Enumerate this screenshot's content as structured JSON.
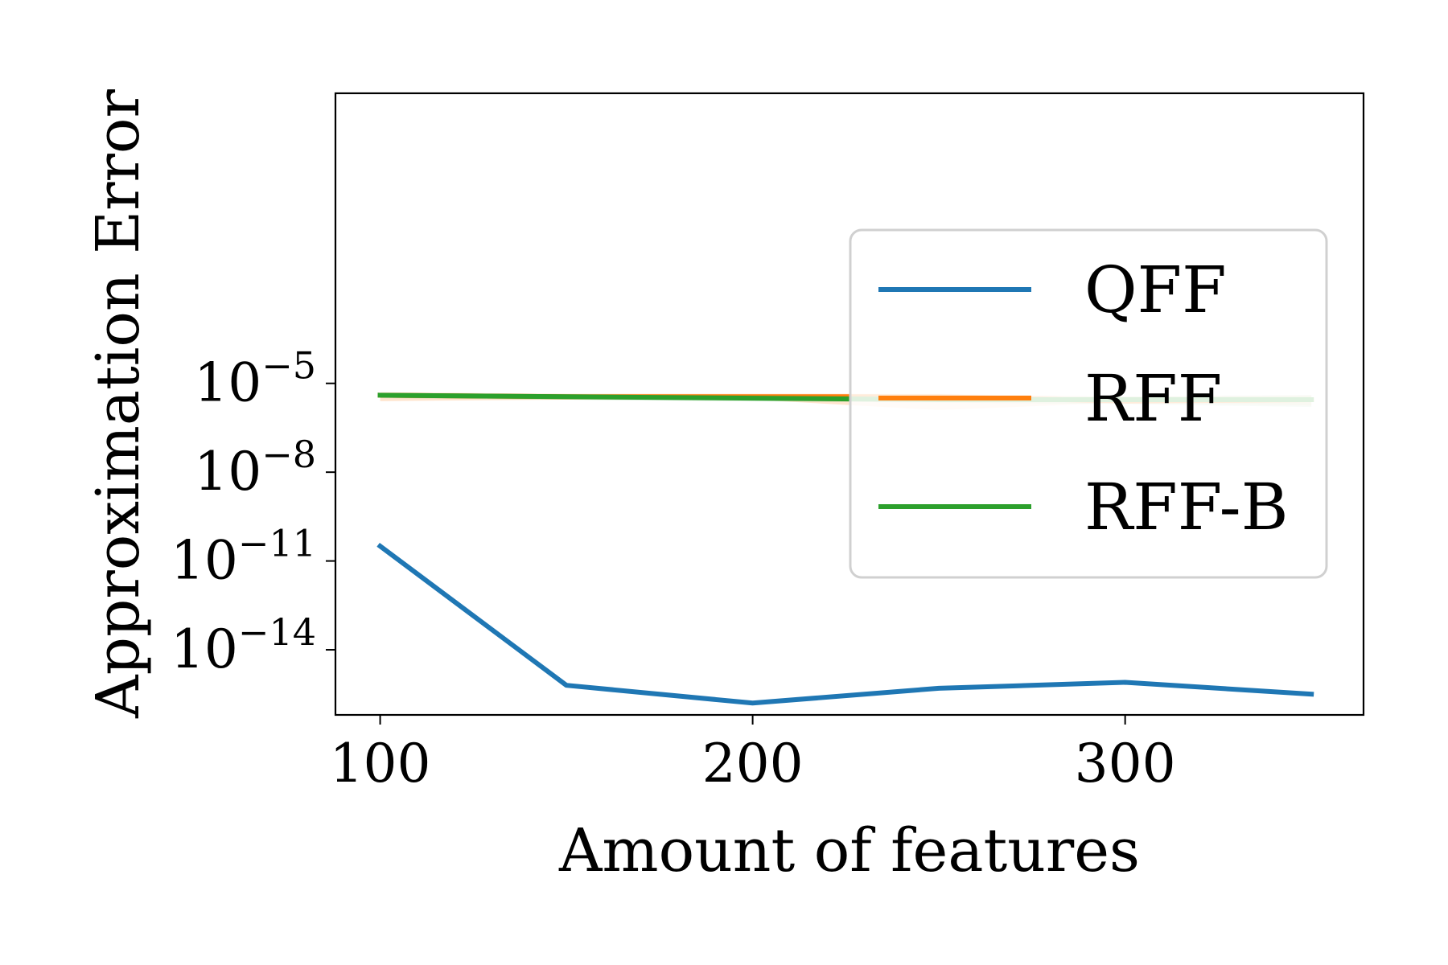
{
  "chart_data": {
    "type": "line",
    "title": "",
    "xlabel": "Amount of features",
    "ylabel": "Approximation Error",
    "x": [
      100,
      150,
      200,
      250,
      300,
      350
    ],
    "xlim": [
      88,
      364
    ],
    "xticks": [
      100,
      200,
      300
    ],
    "xtick_labels": [
      "100",
      "200",
      "300"
    ],
    "yscale": "log",
    "ylim_log10": [
      -16.2,
      4.8
    ],
    "yticks": [
      {
        "exp": -5,
        "base": "10",
        "sup": "−5"
      },
      {
        "exp": -8,
        "base": "10",
        "sup": "−8"
      },
      {
        "exp": -11,
        "base": "10",
        "sup": "−11"
      },
      {
        "exp": -14,
        "base": "10",
        "sup": "−14"
      }
    ],
    "grid": false,
    "legend_position": "center-right",
    "series": [
      {
        "name": "QFF",
        "color": "#1f77b4",
        "log10_values": [
          -10.5,
          -15.2,
          -15.8,
          -15.3,
          -15.1,
          -15.5
        ]
      },
      {
        "name": "RFF",
        "color": "#ff7f0e",
        "log10_values": [
          -5.4,
          -5.45,
          -5.45,
          -5.45,
          -5.6,
          -5.55
        ],
        "band_log10_low": [
          -5.6,
          -5.55,
          -5.55,
          -5.9,
          -5.65,
          -5.75
        ],
        "band_log10_high": [
          -5.3,
          -5.35,
          -5.35,
          -5.35,
          -5.45,
          -5.4
        ]
      },
      {
        "name": "RFF-B",
        "color": "#2ca02c",
        "log10_values": [
          -5.4,
          -5.45,
          -5.5,
          -5.55,
          -5.55,
          -5.55
        ],
        "band_log10_low": [
          -5.5,
          -5.55,
          -5.6,
          -5.65,
          -5.7,
          -5.8
        ],
        "band_log10_high": [
          -5.35,
          -5.4,
          -5.45,
          -5.45,
          -5.45,
          -5.4
        ]
      }
    ]
  }
}
